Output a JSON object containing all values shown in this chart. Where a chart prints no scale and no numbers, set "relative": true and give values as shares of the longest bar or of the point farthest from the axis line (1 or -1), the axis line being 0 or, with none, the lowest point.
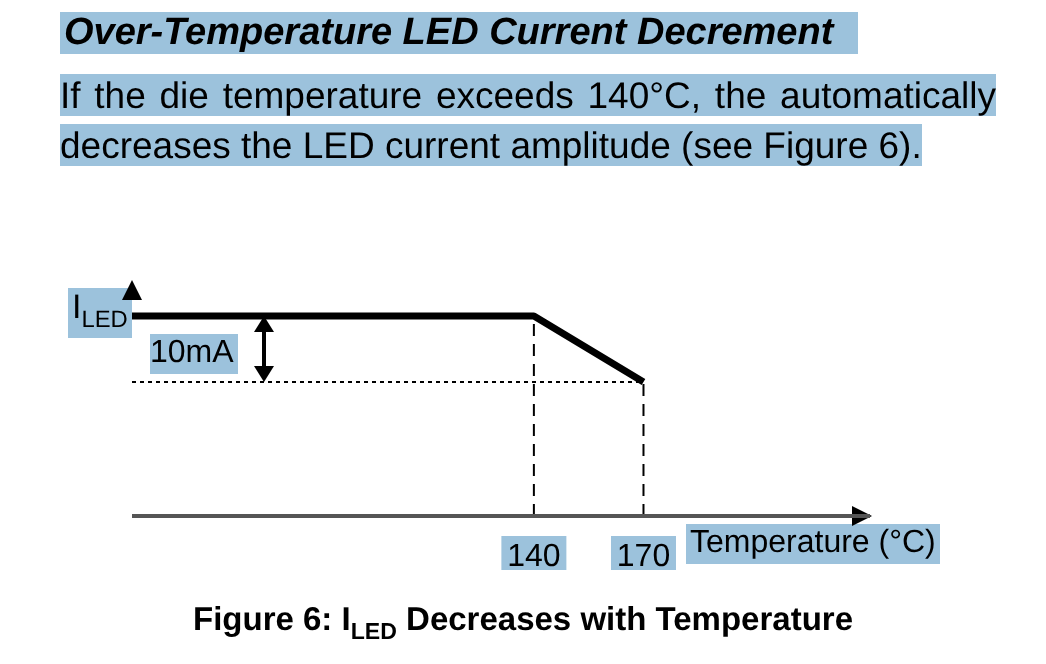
{
  "chart_data": {
    "type": "line",
    "title": "Over-Temperature LED Current Decrement",
    "subtitle": "If the die temperature exceeds 140°C, the automatically decreases the LED current amplitude (see Figure 6).",
    "xlabel": "Temperature (°C)",
    "ylabel": "I$_{LED}$",
    "relative": true,
    "xlim": [
      30,
      232
    ],
    "xticks": [
      140,
      170
    ],
    "series": [
      {
        "x": [
          30,
          140,
          170
        ],
        "values": [
          1,
          1,
          0.67
        ],
        "color": "#000000"
      }
    ],
    "ref_lines": [
      {
        "axis": "x",
        "value": 140,
        "line_style": "dashed",
        "color": "#000000"
      },
      {
        "axis": "x",
        "value": 170,
        "line_style": "dashed",
        "color": "#000000"
      },
      {
        "axis": "y",
        "value": 0.67,
        "line_style": "dotted",
        "color": "#000000"
      }
    ],
    "annotations": [
      "10mA",
      "Figure 6: I$_{LED}$ Decreases with Temperature"
    ],
    "marker": "none",
    "line_style": "solid",
    "grid": false,
    "legend": false
  }
}
